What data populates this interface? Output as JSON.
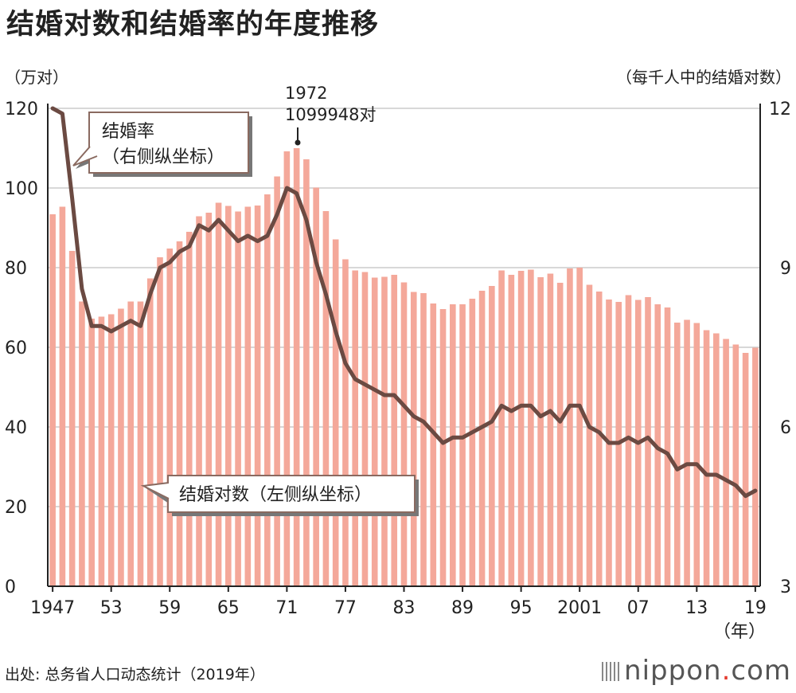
{
  "title": "结婚对数和结婚率的年度推移",
  "source": "出处: 总务省人口动态统计（2019年）",
  "logo": {
    "text": "nippon",
    "dot": ".",
    "suffix": "com"
  },
  "colors": {
    "bars": "#f4a89a",
    "line": "#6b4a42",
    "grid": "#cccccc"
  },
  "chart_data": {
    "type": "bar+line",
    "title": "结婚对数和结婚率的年度推移",
    "left_axis_unit": "（万对）",
    "right_axis_unit": "（每千人中的结婚对数）",
    "x_unit": "（年）",
    "ylim_left": [
      0,
      120
    ],
    "ylim_right": [
      3,
      12
    ],
    "left_ticks": [
      "0",
      "20",
      "40",
      "60",
      "80",
      "100",
      "120"
    ],
    "right_ticks": [
      "3",
      "6",
      "9",
      "12"
    ],
    "x_tick_labels": [
      {
        "year": 1947,
        "label": "1947"
      },
      {
        "year": 1953,
        "label": "53"
      },
      {
        "year": 1959,
        "label": "59"
      },
      {
        "year": 1965,
        "label": "65"
      },
      {
        "year": 1971,
        "label": "71"
      },
      {
        "year": 1977,
        "label": "77"
      },
      {
        "year": 1983,
        "label": "83"
      },
      {
        "year": 1989,
        "label": "89"
      },
      {
        "year": 1995,
        "label": "95"
      },
      {
        "year": 2001,
        "label": "2001"
      },
      {
        "year": 2007,
        "label": "07"
      },
      {
        "year": 2013,
        "label": "13"
      },
      {
        "year": 2019,
        "label": "19"
      }
    ],
    "years": [
      1947,
      1948,
      1949,
      1950,
      1951,
      1952,
      1953,
      1954,
      1955,
      1956,
      1957,
      1958,
      1959,
      1960,
      1961,
      1962,
      1963,
      1964,
      1965,
      1966,
      1967,
      1968,
      1969,
      1970,
      1971,
      1972,
      1973,
      1974,
      1975,
      1976,
      1977,
      1978,
      1979,
      1980,
      1981,
      1982,
      1983,
      1984,
      1985,
      1986,
      1987,
      1988,
      1989,
      1990,
      1991,
      1992,
      1993,
      1994,
      1995,
      1996,
      1997,
      1998,
      1999,
      2000,
      2001,
      2002,
      2003,
      2004,
      2005,
      2006,
      2007,
      2008,
      2009,
      2010,
      2011,
      2012,
      2013,
      2014,
      2015,
      2016,
      2017,
      2018,
      2019
    ],
    "series": [
      {
        "name": "结婚对数（左侧纵坐标）",
        "axis": "left",
        "type": "bar",
        "values": [
          93.4,
          95.3,
          84.2,
          71.5,
          67.2,
          67.7,
          68.3,
          69.7,
          71.5,
          71.5,
          77.3,
          82.6,
          84.8,
          86.6,
          89.0,
          92.9,
          93.8,
          96.3,
          95.5,
          94.1,
          95.3,
          95.6,
          98.4,
          102.9,
          109.2,
          110.0,
          107.2,
          100.1,
          94.2,
          87.1,
          82.1,
          79.3,
          78.9,
          77.5,
          77.7,
          78.2,
          76.3,
          73.9,
          73.6,
          71.0,
          69.6,
          70.8,
          70.8,
          72.2,
          74.2,
          75.4,
          79.3,
          78.2,
          79.2,
          79.5,
          77.6,
          78.5,
          76.2,
          79.8,
          80.0,
          75.7,
          74.0,
          72.0,
          71.4,
          73.1,
          71.9,
          72.6,
          70.8,
          70.0,
          66.2,
          66.9,
          66.1,
          64.3,
          63.5,
          62.1,
          60.7,
          58.6,
          59.9
        ]
      },
      {
        "name": "结婚率（右侧纵坐标）",
        "axis": "right",
        "type": "line",
        "values": [
          12.0,
          11.9,
          10.3,
          8.6,
          7.9,
          7.9,
          7.8,
          7.9,
          8.0,
          7.9,
          8.5,
          9.0,
          9.1,
          9.3,
          9.4,
          9.8,
          9.7,
          9.9,
          9.7,
          9.5,
          9.6,
          9.5,
          9.6,
          10.0,
          10.5,
          10.4,
          9.9,
          9.1,
          8.5,
          7.8,
          7.2,
          6.9,
          6.8,
          6.7,
          6.6,
          6.6,
          6.4,
          6.2,
          6.1,
          5.9,
          5.7,
          5.8,
          5.8,
          5.9,
          6.0,
          6.1,
          6.4,
          6.3,
          6.4,
          6.4,
          6.2,
          6.3,
          6.1,
          6.4,
          6.4,
          6.0,
          5.9,
          5.7,
          5.7,
          5.8,
          5.7,
          5.8,
          5.6,
          5.5,
          5.2,
          5.3,
          5.3,
          5.1,
          5.1,
          5.0,
          4.9,
          4.7,
          4.8
        ]
      }
    ],
    "annotations": {
      "peak_year": "1972",
      "peak_value": "1099948对",
      "rate_callout_line1": "结婚率",
      "rate_callout_line2": "（右侧纵坐标）",
      "count_callout": "结婚对数（左侧纵坐标）"
    }
  }
}
